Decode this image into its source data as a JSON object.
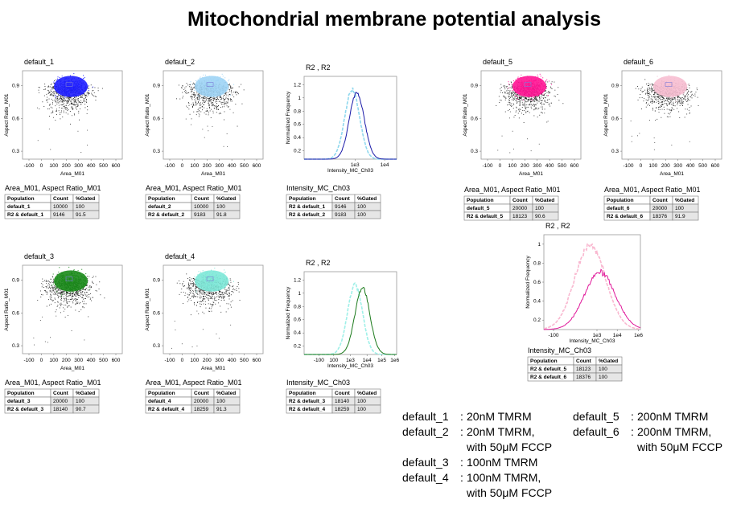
{
  "title": "Mitochondrial membrane potential analysis",
  "panels": [
    {
      "kind": "scatter",
      "title": "default_1",
      "x_label": "Area_M01",
      "y_label": "Aspect Ratio_M01",
      "x_ticks": [
        "-100",
        "0",
        "100",
        "200",
        "300",
        "400",
        "500",
        "600"
      ],
      "y_ticks": [
        "0.9",
        "0.6",
        "0.3"
      ],
      "colors": [
        "#1f1fff"
      ],
      "table": {
        "caption": "Area_M01, Aspect Ratio_M01",
        "header": [
          "Population",
          "Count",
          "%Gated"
        ],
        "rows": [
          [
            "default_1",
            "10000",
            "100"
          ],
          [
            "R2 & default_1",
            "9146",
            "91.5"
          ]
        ]
      }
    },
    {
      "kind": "scatter",
      "title": "default_2",
      "x_label": "Area_M01",
      "y_label": "Aspect Ratio_M01",
      "x_ticks": [
        "-100",
        "0",
        "100",
        "200",
        "300",
        "400",
        "500",
        "600"
      ],
      "y_ticks": [
        "0.9",
        "0.6",
        "0.3"
      ],
      "colors": [
        "#9fd4f5"
      ],
      "table": {
        "caption": "Area_M01, Aspect Ratio_M01",
        "header": [
          "Population",
          "Count",
          "%Gated"
        ],
        "rows": [
          [
            "default_2",
            "10000",
            "100"
          ],
          [
            "R2 & default_2",
            "9183",
            "91.8"
          ]
        ]
      }
    },
    {
      "kind": "histogram",
      "title": "R2 , R2",
      "x_label": "Intensity_MC_Ch03",
      "y_label": "Normalized Frequency",
      "x_ticks": [
        "1e3",
        "1e4"
      ],
      "y_ticks": [
        "1.2",
        "1",
        "0.8",
        "0.6",
        "0.4",
        "0.2"
      ],
      "colors": [
        "#8fd8ee",
        "#1a1aa8"
      ],
      "table": {
        "caption": "Intensity_MC_Ch03",
        "header": [
          "Population",
          "Count",
          "%Gated"
        ],
        "rows": [
          [
            "R2 & default_1",
            "9146",
            "100"
          ],
          [
            "R2 & default_2",
            "9183",
            "100"
          ]
        ]
      }
    },
    {
      "kind": "scatter",
      "title": "default_5",
      "x_label": "Area_M01",
      "y_label": "Aspect Ratio_M01",
      "x_ticks": [
        "-100",
        "0",
        "100",
        "200",
        "300",
        "400",
        "500",
        "600"
      ],
      "y_ticks": [
        "0.9",
        "0.6",
        "0.3"
      ],
      "colors": [
        "#ff1493"
      ],
      "table": {
        "caption": "Area_M01, Aspect Ratio_M01",
        "header": [
          "Population",
          "Count",
          "%Gated"
        ],
        "rows": [
          [
            "default_5",
            "20000",
            "100"
          ],
          [
            "R2 & default_5",
            "18123",
            "90.6"
          ]
        ]
      }
    },
    {
      "kind": "scatter",
      "title": "default_6",
      "x_label": "Area_M01",
      "y_label": "Aspect Ratio_M01",
      "x_ticks": [
        "-100",
        "0",
        "100",
        "200",
        "300",
        "400",
        "500",
        "600"
      ],
      "y_ticks": [
        "0.9",
        "0.6",
        "0.3"
      ],
      "colors": [
        "#f7bfd2"
      ],
      "table": {
        "caption": "Area_M01, Aspect Ratio_M01",
        "header": [
          "Population",
          "Count",
          "%Gated"
        ],
        "rows": [
          [
            "default_6",
            "20000",
            "100"
          ],
          [
            "R2 & default_6",
            "18376",
            "91.9"
          ]
        ]
      }
    },
    {
      "kind": "scatter",
      "title": "default_3",
      "x_label": "Area_M01",
      "y_label": "Aspect Ratio_M01",
      "x_ticks": [
        "-100",
        "0",
        "100",
        "200",
        "300",
        "400",
        "500",
        "600"
      ],
      "y_ticks": [
        "0.9",
        "0.6",
        "0.3"
      ],
      "colors": [
        "#1a8a1a"
      ],
      "table": {
        "caption": "Area_M01, Aspect Ratio_M01",
        "header": [
          "Population",
          "Count",
          "%Gated"
        ],
        "rows": [
          [
            "default_3",
            "20000",
            "100"
          ],
          [
            "R2 & default_3",
            "18140",
            "90.7"
          ]
        ]
      }
    },
    {
      "kind": "scatter",
      "title": "default_4",
      "x_label": "Area_M01",
      "y_label": "Aspect Ratio_M01",
      "x_ticks": [
        "-100",
        "0",
        "100",
        "200",
        "300",
        "400",
        "500",
        "600"
      ],
      "y_ticks": [
        "0.9",
        "0.6",
        "0.3"
      ],
      "colors": [
        "#7ee8d8"
      ],
      "table": {
        "caption": "Area_M01, Aspect Ratio_M01",
        "header": [
          "Population",
          "Count",
          "%Gated"
        ],
        "rows": [
          [
            "default_4",
            "20000",
            "100"
          ],
          [
            "R2 & default_4",
            "18259",
            "91.3"
          ]
        ]
      }
    },
    {
      "kind": "histogram",
      "title": "R2 , R2",
      "x_label": "Intensity_MC_Ch03",
      "y_label": "Normalized Frequency",
      "x_ticks": [
        "-100",
        "100",
        "1e3",
        "1e4",
        "1e5",
        "1e6"
      ],
      "y_ticks": [
        "1.2",
        "1",
        "0.8",
        "0.6",
        "0.4",
        "0.2"
      ],
      "colors": [
        "#9ff0e8",
        "#1b7a1b"
      ],
      "table": {
        "caption": "Intensity_MC_Ch03",
        "header": [
          "Population",
          "Count",
          "%Gated"
        ],
        "rows": [
          [
            "R2 & default_3",
            "18140",
            "100"
          ],
          [
            "R2 & default_4",
            "18259",
            "100"
          ]
        ]
      }
    },
    {
      "kind": "histogram",
      "title": "R2 , R2",
      "x_label": "Intensity_MC_Ch03",
      "y_label": "Normalized Frequency",
      "x_ticks": [
        "-100",
        "1e3",
        "1e4",
        "1e6"
      ],
      "y_ticks": [
        "1",
        "0.8",
        "0.6",
        "0.4",
        "0.2"
      ],
      "colors": [
        "#f9b8d0",
        "#e0189a"
      ],
      "table": {
        "caption": "Intensity_MC_Ch03",
        "header": [
          "Population",
          "Count",
          "%Gated"
        ],
        "rows": [
          [
            "R2 & default_5",
            "18123",
            "100"
          ],
          [
            "R2 & default_6",
            "18376",
            "100"
          ]
        ]
      }
    }
  ],
  "notes": [
    [
      "default_1",
      ":",
      "20nM TMRM"
    ],
    [
      "default_2",
      ":",
      "20nM TMRM,",
      "with 50μM FCCP"
    ],
    [
      "default_3",
      ":",
      "100nM TMRM"
    ],
    [
      "default_4",
      ":",
      "100nM TMRM,",
      "with 50μM FCCP"
    ],
    [
      "default_5",
      ":",
      "200nM TMRM"
    ],
    [
      "default_6",
      ":",
      "200nM TMRM,",
      "with 50μM FCCP"
    ]
  ]
}
